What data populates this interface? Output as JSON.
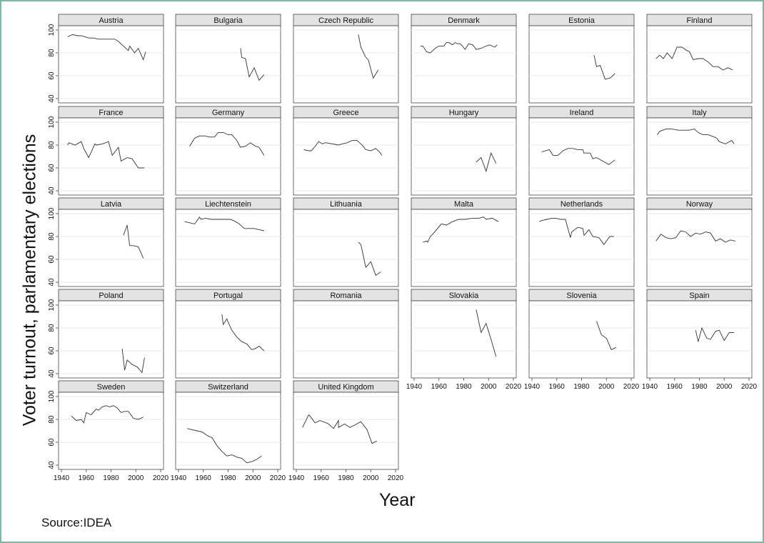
{
  "figure": {
    "ylabel": "Voter turnout, parlamentary elections",
    "xlabel": "Year",
    "source": "Source:IDEA"
  },
  "chart_data": {
    "type": "line",
    "xlabel": "Year",
    "ylabel": "Voter turnout, parlamentary elections",
    "xlim": [
      1940,
      2020
    ],
    "ylim": [
      40,
      100
    ],
    "xticks": [
      1940,
      1960,
      1980,
      2000,
      2020
    ],
    "yticks": [
      40,
      60,
      80,
      100
    ],
    "grid": true,
    "panels": [
      {
        "name": "Austria",
        "x": [
          1945,
          1949,
          1953,
          1956,
          1959,
          1962,
          1966,
          1970,
          1971,
          1975,
          1979,
          1983,
          1986,
          1990,
          1994,
          1995,
          1999,
          2002,
          2006,
          2008
        ],
        "y": [
          94,
          96,
          95,
          95,
          94,
          93,
          93,
          92,
          92,
          92,
          92,
          92,
          90,
          86,
          82,
          86,
          80,
          84,
          74,
          81
        ]
      },
      {
        "name": "Bulgaria",
        "x": [
          1990,
          1991,
          1994,
          1997,
          2001,
          2005,
          2009
        ],
        "y": [
          84,
          76,
          75,
          59,
          67,
          56,
          61
        ]
      },
      {
        "name": "Czech Republic",
        "x": [
          1990,
          1992,
          1996,
          1998,
          2002,
          2006
        ],
        "y": [
          96,
          85,
          76,
          74,
          58,
          65
        ]
      },
      {
        "name": "Denmark",
        "x": [
          1945,
          1947,
          1950,
          1953,
          1957,
          1960,
          1964,
          1966,
          1968,
          1971,
          1973,
          1975,
          1977,
          1979,
          1981,
          1984,
          1987,
          1988,
          1990,
          1994,
          1998,
          2001,
          2005,
          2007
        ],
        "y": [
          86,
          86,
          81,
          80,
          84,
          86,
          86,
          89,
          89,
          87,
          89,
          88,
          88,
          86,
          83,
          88,
          87,
          86,
          83,
          84,
          86,
          87,
          85,
          87
        ]
      },
      {
        "name": "Estonia",
        "x": [
          1990,
          1992,
          1995,
          1999,
          2003,
          2007
        ],
        "y": [
          78,
          68,
          69,
          57,
          58,
          62
        ]
      },
      {
        "name": "Finland",
        "x": [
          1945,
          1948,
          1951,
          1954,
          1958,
          1962,
          1966,
          1970,
          1972,
          1975,
          1979,
          1983,
          1987,
          1991,
          1995,
          1999,
          2003,
          2007
        ],
        "y": [
          75,
          78,
          75,
          80,
          75,
          85,
          85,
          82,
          81,
          74,
          75,
          75,
          72,
          68,
          68,
          65,
          67,
          65
        ]
      },
      {
        "name": "France",
        "x": [
          1945,
          1946,
          1951,
          1956,
          1958,
          1962,
          1967,
          1968,
          1973,
          1978,
          1981,
          1986,
          1988,
          1993,
          1997,
          2002,
          2007
        ],
        "y": [
          80,
          82,
          80,
          83,
          77,
          69,
          81,
          80,
          81,
          83,
          71,
          78,
          66,
          69,
          68,
          60,
          60
        ]
      },
      {
        "name": "Germany",
        "x": [
          1949,
          1953,
          1957,
          1961,
          1965,
          1969,
          1972,
          1976,
          1980,
          1983,
          1987,
          1990,
          1994,
          1998,
          2002,
          2005,
          2009
        ],
        "y": [
          79,
          86,
          88,
          88,
          87,
          87,
          91,
          91,
          89,
          89,
          84,
          78,
          79,
          82,
          79,
          78,
          71
        ]
      },
      {
        "name": "Greece",
        "x": [
          1946,
          1950,
          1951,
          1952,
          1956,
          1958,
          1961,
          1963,
          1964,
          1974,
          1977,
          1981,
          1985,
          1989,
          1990,
          1993,
          1996,
          2000,
          2004,
          2007,
          2009
        ],
        "y": [
          76,
          75,
          75,
          75,
          80,
          83,
          81,
          82,
          82,
          80,
          81,
          82,
          84,
          84,
          83,
          80,
          76,
          75,
          77,
          74,
          71
        ]
      },
      {
        "name": "Hungary",
        "x": [
          1990,
          1994,
          1998,
          2002,
          2006
        ],
        "y": [
          65,
          69,
          57,
          73,
          64
        ]
      },
      {
        "name": "Ireland",
        "x": [
          1948,
          1951,
          1954,
          1957,
          1961,
          1965,
          1969,
          1973,
          1977,
          1981,
          1982,
          1982,
          1987,
          1989,
          1992,
          1997,
          2002,
          2007
        ],
        "y": [
          74,
          75,
          76,
          71,
          71,
          75,
          77,
          77,
          76,
          76,
          73,
          73,
          73,
          68,
          69,
          66,
          63,
          67
        ]
      },
      {
        "name": "Italy",
        "x": [
          1946,
          1948,
          1953,
          1958,
          1963,
          1968,
          1972,
          1976,
          1979,
          1983,
          1987,
          1992,
          1994,
          1996,
          2001,
          2006,
          2008
        ],
        "y": [
          89,
          92,
          94,
          94,
          93,
          93,
          93,
          94,
          91,
          89,
          89,
          87,
          86,
          83,
          81,
          84,
          81
        ]
      },
      {
        "name": "Latvia",
        "x": [
          1990,
          1993,
          1995,
          1998,
          2002,
          2006
        ],
        "y": [
          81,
          90,
          72,
          72,
          71,
          61
        ]
      },
      {
        "name": "Liechtenstein",
        "x": [
          1945,
          1949,
          1953,
          1957,
          1958,
          1962,
          1966,
          1970,
          1974,
          1978,
          1982,
          1986,
          1989,
          1993,
          1997,
          2001,
          2005,
          2009
        ],
        "y": [
          93,
          92,
          91,
          97,
          95,
          96,
          95,
          95,
          95,
          95,
          95,
          93,
          91,
          87,
          87,
          87,
          86,
          85
        ]
      },
      {
        "name": "Lithuania",
        "x": [
          1990,
          1992,
          1996,
          2000,
          2004,
          2008
        ],
        "y": [
          75,
          73,
          53,
          58,
          46,
          49
        ]
      },
      {
        "name": "Malta",
        "x": [
          1947,
          1950,
          1951,
          1953,
          1955,
          1962,
          1966,
          1971,
          1976,
          1981,
          1987,
          1992,
          1996,
          1998,
          2003,
          2008
        ],
        "y": [
          75,
          76,
          75,
          80,
          82,
          91,
          90,
          93,
          95,
          95,
          96,
          96,
          97,
          95,
          96,
          93
        ]
      },
      {
        "name": "Netherlands",
        "x": [
          1946,
          1948,
          1952,
          1956,
          1959,
          1963,
          1967,
          1971,
          1972,
          1977,
          1981,
          1982,
          1986,
          1989,
          1994,
          1998,
          2002,
          2003,
          2006
        ],
        "y": [
          93,
          94,
          95,
          96,
          96,
          95,
          95,
          79,
          84,
          88,
          87,
          81,
          86,
          80,
          79,
          73,
          79,
          80,
          80
        ]
      },
      {
        "name": "Norway",
        "x": [
          1945,
          1949,
          1953,
          1957,
          1961,
          1965,
          1969,
          1973,
          1977,
          1981,
          1985,
          1989,
          1993,
          1997,
          2001,
          2005,
          2009
        ],
        "y": [
          76,
          82,
          79,
          78,
          79,
          85,
          84,
          80,
          83,
          82,
          84,
          83,
          76,
          78,
          75,
          77,
          76
        ]
      },
      {
        "name": "Poland",
        "x": [
          1989,
          1991,
          1993,
          1997,
          2001,
          2005,
          2007
        ],
        "y": [
          62,
          43,
          52,
          48,
          46,
          41,
          54
        ]
      },
      {
        "name": "Portugal",
        "x": [
          1975,
          1976,
          1979,
          1980,
          1983,
          1985,
          1987,
          1991,
          1995,
          1999,
          2002,
          2005,
          2009
        ],
        "y": [
          92,
          83,
          88,
          85,
          78,
          75,
          72,
          68,
          66,
          61,
          62,
          64,
          60
        ]
      },
      {
        "name": "Romania",
        "x": [],
        "y": []
      },
      {
        "name": "Slovakia",
        "x": [
          1990,
          1994,
          1998,
          2002,
          2006
        ],
        "y": [
          96,
          76,
          84,
          70,
          55
        ]
      },
      {
        "name": "Slovenia",
        "x": [
          1992,
          1996,
          2000,
          2004,
          2008
        ],
        "y": [
          86,
          74,
          71,
          61,
          63
        ]
      },
      {
        "name": "Spain",
        "x": [
          1977,
          1979,
          1982,
          1986,
          1989,
          1993,
          1996,
          2000,
          2004,
          2008
        ],
        "y": [
          78,
          68,
          80,
          71,
          70,
          77,
          78,
          69,
          76,
          76
        ]
      },
      {
        "name": "Sweden",
        "x": [
          1948,
          1952,
          1956,
          1958,
          1960,
          1964,
          1968,
          1970,
          1973,
          1976,
          1979,
          1982,
          1985,
          1988,
          1991,
          1994,
          1998,
          2002,
          2006
        ],
        "y": [
          83,
          79,
          80,
          77,
          86,
          84,
          89,
          88,
          91,
          92,
          91,
          92,
          90,
          86,
          87,
          87,
          81,
          80,
          82
        ]
      },
      {
        "name": "Switzerland",
        "x": [
          1947,
          1951,
          1955,
          1959,
          1963,
          1967,
          1971,
          1975,
          1979,
          1983,
          1987,
          1991,
          1995,
          1999,
          2003,
          2007
        ],
        "y": [
          72,
          71,
          70,
          69,
          66,
          64,
          57,
          52,
          48,
          49,
          47,
          46,
          42,
          43,
          45,
          48
        ]
      },
      {
        "name": "United Kingdom",
        "x": [
          1945,
          1950,
          1951,
          1955,
          1959,
          1964,
          1966,
          1970,
          1974,
          1974,
          1979,
          1983,
          1987,
          1992,
          1997,
          2001,
          2005
        ],
        "y": [
          73,
          84,
          83,
          77,
          79,
          77,
          76,
          72,
          79,
          73,
          76,
          73,
          75,
          78,
          71,
          59,
          61
        ]
      }
    ]
  }
}
